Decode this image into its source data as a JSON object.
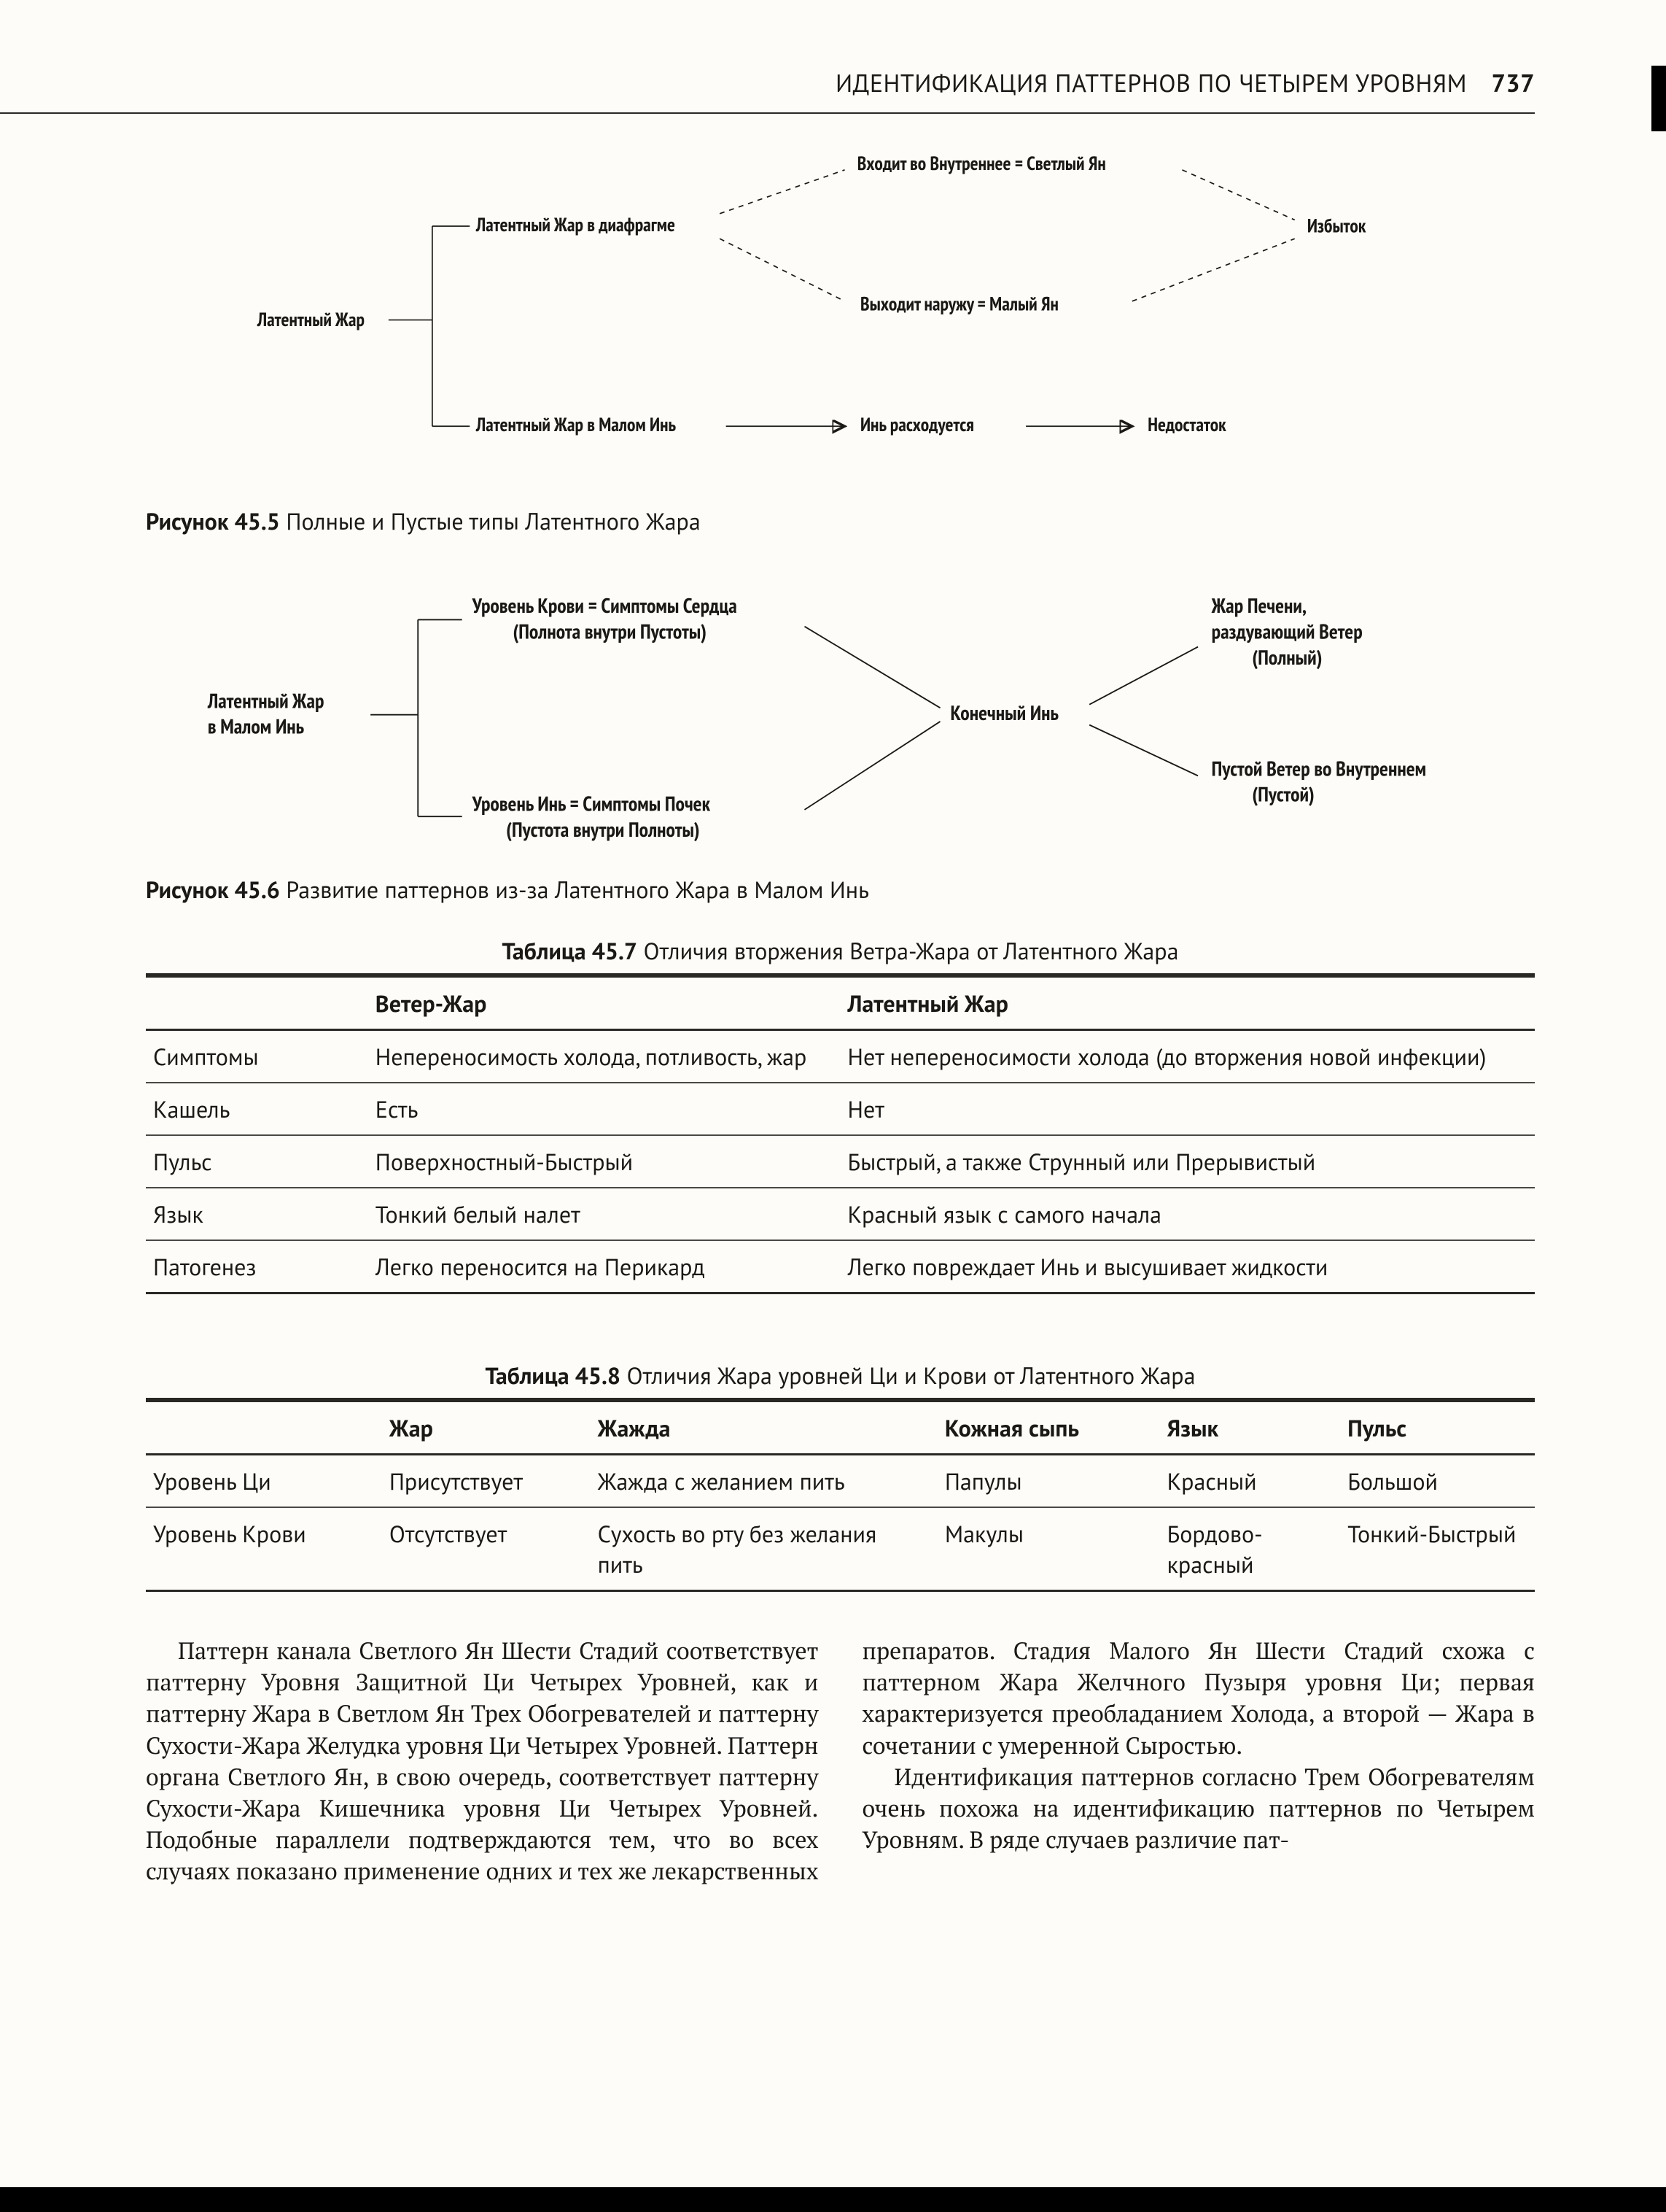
{
  "header": {
    "running_title": "ИДЕНТИФИКАЦИЯ ПАТТЕРНОВ ПО ЧЕТЫРЕМ УРОВНЯМ",
    "page_number": "737"
  },
  "fig45_5": {
    "caption_label": "Рисунок 45.5",
    "caption_text": "Полные и Пустые типы Латентного Жара",
    "root": "Латентный Жар",
    "branch_top": "Латентный Жар в диафрагме",
    "branch_bot": "Латентный Жар в Малом Инь",
    "inner": "Входит во Внутреннее = Светлый Ян",
    "outer": "Выходит наружу = Малый Ян",
    "excess": "Избыток",
    "yin_spent": "Инь расходуется",
    "deficiency": "Недостаток"
  },
  "fig45_6": {
    "caption_label": "Рисунок 45.6",
    "caption_text": "Развитие паттернов из-за Латентного Жара в Малом Инь",
    "root1": "Латентный Жар",
    "root2": "в Малом Инь",
    "blood1": "Уровень Крови = Симптомы Сердца",
    "blood2": "(Полнота внутри Пустоты)",
    "yin1": "Уровень Инь = Симптомы Почек",
    "yin2": "(Пустота внутри Полноты)",
    "center": "Конечный Инь",
    "liver1": "Жар Печени,",
    "liver2": "раздувающий Ветер",
    "liver3": "(Полный)",
    "empty1": "Пустой Ветер во Внутреннем",
    "empty2": "(Пустой)"
  },
  "table45_7": {
    "caption_label": "Таблица 45.7",
    "caption_text": "Отличия вторжения Ветра-Жара от Латентного Жара",
    "head_col1": "",
    "head_col2": "Ветер-Жар",
    "head_col3": "Латентный Жар",
    "rows": [
      {
        "k": "Симптомы",
        "a": "Непереносимость холода, потливость, жар",
        "b": "Нет непереносимости холода (до вторжения новой инфекции)"
      },
      {
        "k": "Кашель",
        "a": "Есть",
        "b": "Нет"
      },
      {
        "k": "Пульс",
        "a": "Поверхностный-Быстрый",
        "b": "Быстрый, а также Струнный или Прерывистый"
      },
      {
        "k": "Язык",
        "a": "Тонкий белый налет",
        "b": "Красный язык с самого начала"
      },
      {
        "k": "Патогенез",
        "a": "Легко переносится на Перикард",
        "b": "Легко повреждает Инь и высушивает жидкости"
      }
    ]
  },
  "table45_8": {
    "caption_label": "Таблица 45.8",
    "caption_text": "Отличия Жара уровней Ци и Крови от Латентного Жара",
    "head": [
      "",
      "Жар",
      "Жажда",
      "Кожная сыпь",
      "Язык",
      "Пульс"
    ],
    "rows": [
      {
        "k": "Уровень Ци",
        "c": [
          "Присутствует",
          "Жажда с желанием пить",
          "Папулы",
          "Красный",
          "Большой"
        ]
      },
      {
        "k": "Уровень Крови",
        "c": [
          "Отсутствует",
          "Сухость во рту без желания пить",
          "Макулы",
          "Бордово-красный",
          "Тонкий-Быстрый"
        ]
      }
    ]
  },
  "body": {
    "p1": "Паттерн канала Светлого Ян Шести Стадий соответствует паттерну Уровня Защитной Ци Четырех Уровней, как и паттерну Жара в Светлом Ян Трех Обогревателей и паттерну Сухости-Жара Желудка уровня Ци Четырех Уровней. Паттерн органа Светлого Ян, в свою очередь, соответствует паттерну Сухости-Жара Кишечника уровня Ци Четырех Уровней. Подобные параллели подтверждаются тем, что во всех случаях показано применение одних и тех же лекарственных препаратов. Стадия Малого Ян Шести Стадий схожа с паттерном Жара Желчного Пузыря уровня Ци; первая характеризуется преобладанием Холода, а второй — Жара в сочетании с умеренной Сыростью.",
    "p2": "Идентификация паттернов согласно Трем Обогревателям очень похожа на идентификацию паттернов по Четырем Уровням. В ряде случаев различие пат-"
  },
  "colors": {
    "page_bg": "#fdfcf8",
    "ink": "#1a1916",
    "rule": "#2a2824"
  }
}
